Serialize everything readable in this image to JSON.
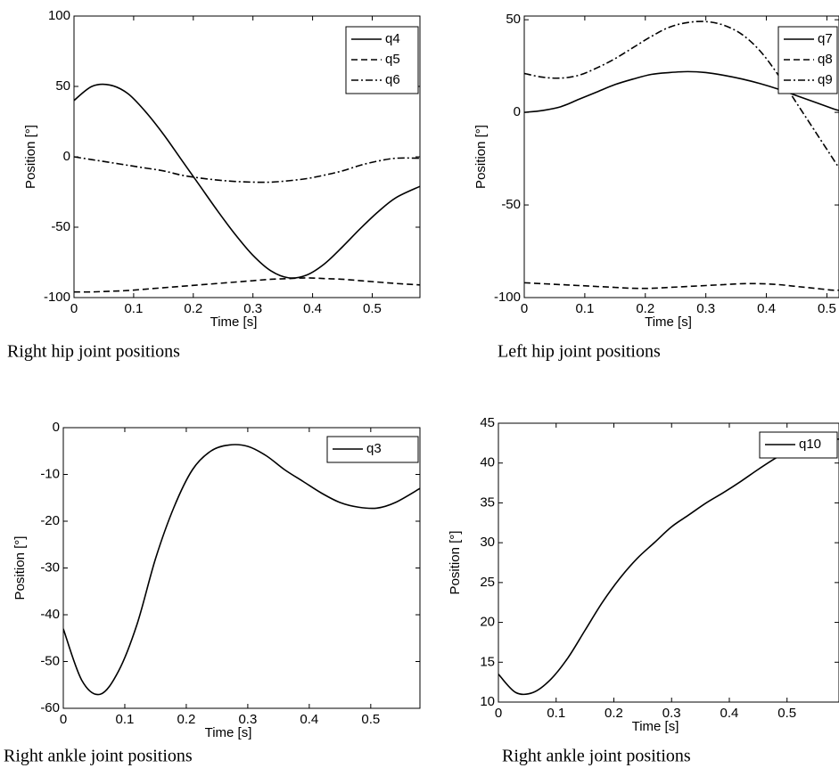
{
  "chart_data": [
    {
      "type": "line",
      "caption": "Right hip joint positions",
      "xlabel": "Time [s]",
      "ylabel": "Position [°]",
      "x": [
        0,
        0.03,
        0.06,
        0.09,
        0.12,
        0.15,
        0.18,
        0.21,
        0.24,
        0.27,
        0.3,
        0.33,
        0.36,
        0.39,
        0.42,
        0.45,
        0.48,
        0.51,
        0.54,
        0.58
      ],
      "series": [
        {
          "name": "q4",
          "color": "#000000",
          "linestyle": "solid",
          "values": [
            40,
            50,
            51,
            45,
            32,
            16,
            -2,
            -20,
            -38,
            -55,
            -70,
            -81,
            -86,
            -84,
            -76,
            -64,
            -51,
            -39,
            -29,
            -21
          ]
        },
        {
          "name": "q5",
          "color": "#000000",
          "linestyle": "dashed",
          "values": [
            -96,
            -96,
            -95.5,
            -95,
            -94,
            -93,
            -92,
            -91,
            -90,
            -89,
            -88,
            -87,
            -86.5,
            -86,
            -86.5,
            -87,
            -88,
            -89,
            -90,
            -91
          ]
        },
        {
          "name": "q6",
          "color": "#000000",
          "linestyle": "dashdot",
          "values": [
            0,
            -2,
            -4,
            -6,
            -8,
            -10,
            -13,
            -15,
            -16.5,
            -17.5,
            -18,
            -18,
            -17,
            -15.5,
            -13,
            -10,
            -6,
            -3,
            -1,
            -1
          ]
        }
      ],
      "xlim": [
        0,
        0.58
      ],
      "xticks": [
        0,
        0.1,
        0.2,
        0.3,
        0.4,
        0.5
      ],
      "ylim": [
        -100,
        100
      ],
      "yticks": [
        -100,
        -50,
        0,
        50,
        100
      ],
      "legend": "upper right"
    },
    {
      "type": "line",
      "caption": "Left hip joint positions",
      "xlabel": "Time [s]",
      "ylabel": "Position [°]",
      "x": [
        0,
        0.03,
        0.06,
        0.09,
        0.12,
        0.15,
        0.18,
        0.21,
        0.24,
        0.27,
        0.3,
        0.33,
        0.36,
        0.39,
        0.42,
        0.45,
        0.48,
        0.51,
        0.52
      ],
      "series": [
        {
          "name": "q7",
          "color": "#000000",
          "linestyle": "solid",
          "values": [
            0,
            1,
            3,
            7,
            11,
            15,
            18,
            20.5,
            21.5,
            22,
            21.5,
            20,
            18,
            15.5,
            12.5,
            9,
            5.5,
            2,
            1
          ]
        },
        {
          "name": "q8",
          "color": "#000000",
          "linestyle": "dashed",
          "values": [
            -92,
            -92.5,
            -93,
            -93.5,
            -94,
            -94.5,
            -95,
            -95,
            -94.5,
            -94,
            -93.5,
            -93,
            -92.5,
            -92.5,
            -93,
            -94,
            -95,
            -96,
            -96
          ]
        },
        {
          "name": "q9",
          "color": "#000000",
          "linestyle": "dashdot",
          "values": [
            21,
            19,
            18.5,
            20,
            24,
            29,
            35,
            41,
            46,
            48.5,
            49,
            47,
            42,
            33,
            20,
            5,
            -10,
            -25,
            -30
          ]
        }
      ],
      "xlim": [
        0,
        0.52
      ],
      "xticks": [
        0,
        0.1,
        0.2,
        0.3,
        0.4,
        0.5
      ],
      "ylim": [
        -100,
        52
      ],
      "yticks": [
        -100,
        -50,
        0,
        50
      ],
      "legend": "upper right"
    },
    {
      "type": "line",
      "caption": "Right ankle joint positions",
      "xlabel": "Time [s]",
      "ylabel": "Position [°]",
      "x": [
        0,
        0.03,
        0.06,
        0.09,
        0.12,
        0.15,
        0.18,
        0.21,
        0.24,
        0.27,
        0.3,
        0.33,
        0.36,
        0.39,
        0.42,
        0.45,
        0.48,
        0.51,
        0.54,
        0.58
      ],
      "series": [
        {
          "name": "q3",
          "color": "#000000",
          "linestyle": "solid",
          "values": [
            -43,
            -54,
            -57,
            -52,
            -42,
            -28,
            -17,
            -9,
            -5,
            -3.7,
            -4,
            -6,
            -9,
            -11.5,
            -14,
            -16,
            -17,
            -17.2,
            -16,
            -13
          ]
        }
      ],
      "xlim": [
        0,
        0.58
      ],
      "xticks": [
        0,
        0.1,
        0.2,
        0.3,
        0.4,
        0.5
      ],
      "ylim": [
        -60,
        0
      ],
      "yticks": [
        -60,
        -50,
        -40,
        -30,
        -20,
        -10,
        0
      ],
      "legend": "upper right"
    },
    {
      "type": "line",
      "caption": "Right ankle joint positions",
      "xlabel": "Time [s]",
      "ylabel": "Position [°]",
      "x": [
        0,
        0.03,
        0.06,
        0.09,
        0.12,
        0.15,
        0.18,
        0.21,
        0.24,
        0.27,
        0.3,
        0.33,
        0.36,
        0.39,
        0.42,
        0.45,
        0.48,
        0.51,
        0.54,
        0.57,
        0.59
      ],
      "series": [
        {
          "name": "q10",
          "color": "#000000",
          "linestyle": "solid",
          "values": [
            13.5,
            11.2,
            11.2,
            12.8,
            15.5,
            19,
            22.5,
            25.5,
            28,
            30,
            32,
            33.5,
            35,
            36.3,
            37.7,
            39.2,
            40.6,
            41.8,
            42.6,
            43,
            43
          ]
        }
      ],
      "xlim": [
        0,
        0.59
      ],
      "xticks": [
        0,
        0.1,
        0.2,
        0.3,
        0.4,
        0.5
      ],
      "ylim": [
        10,
        45
      ],
      "yticks": [
        10,
        15,
        20,
        25,
        30,
        35,
        40,
        45
      ],
      "legend": "upper right"
    }
  ]
}
